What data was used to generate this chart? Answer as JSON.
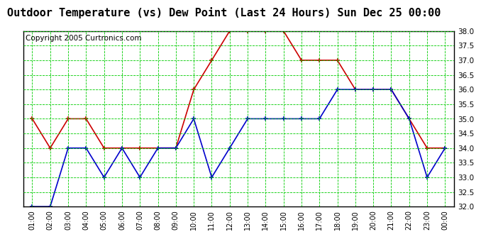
{
  "title": "Outdoor Temperature (vs) Dew Point (Last 24 Hours) Sun Dec 25 00:00",
  "copyright": "Copyright 2005 Curtronics.com",
  "x_labels": [
    "01:00",
    "02:00",
    "03:00",
    "04:00",
    "05:00",
    "06:00",
    "07:00",
    "08:00",
    "09:00",
    "10:00",
    "11:00",
    "12:00",
    "13:00",
    "14:00",
    "15:00",
    "16:00",
    "17:00",
    "18:00",
    "19:00",
    "20:00",
    "21:00",
    "22:00",
    "23:00",
    "00:00"
  ],
  "temp_red": [
    35.0,
    34.0,
    35.0,
    35.0,
    34.0,
    34.0,
    34.0,
    34.0,
    34.0,
    36.0,
    37.0,
    38.0,
    38.0,
    38.0,
    38.0,
    37.0,
    37.0,
    37.0,
    36.0,
    36.0,
    36.0,
    35.0,
    34.0,
    34.0
  ],
  "temp_blue": [
    32.0,
    32.0,
    34.0,
    34.0,
    33.0,
    34.0,
    33.0,
    34.0,
    34.0,
    35.0,
    33.0,
    34.0,
    35.0,
    35.0,
    35.0,
    35.0,
    35.0,
    36.0,
    36.0,
    36.0,
    36.0,
    35.0,
    33.0,
    34.0
  ],
  "ylim": [
    32.0,
    38.0
  ],
  "yticks": [
    32.0,
    32.5,
    33.0,
    33.5,
    34.0,
    34.5,
    35.0,
    35.5,
    36.0,
    36.5,
    37.0,
    37.5,
    38.0
  ],
  "red_color": "#cc0000",
  "blue_color": "#0000cc",
  "grid_color": "#00cc00",
  "bg_color": "#ffffff",
  "plot_bg_color": "#ffffff",
  "title_fontsize": 11,
  "copyright_fontsize": 7.5
}
